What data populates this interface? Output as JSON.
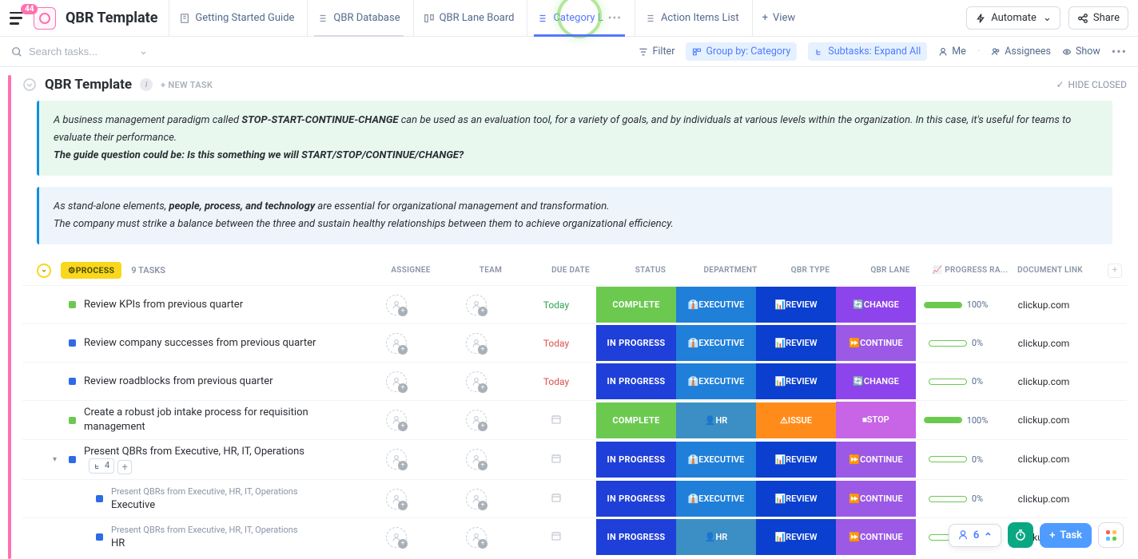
{
  "topbar": {
    "badge": "44",
    "title": "QBR Template",
    "tabs": [
      {
        "label": "Getting Started Guide",
        "icon": "doc"
      },
      {
        "label": "QBR Database",
        "icon": "list"
      },
      {
        "label": "QBR Lane Board",
        "icon": "board"
      },
      {
        "label": "Category L",
        "icon": "list",
        "active": true
      },
      {
        "label": "Action Items List",
        "icon": "list"
      }
    ],
    "addView": "View",
    "automate": "Automate",
    "share": "Share"
  },
  "toolbar": {
    "searchPlaceholder": "Search tasks...",
    "filter": "Filter",
    "groupBy": "Group by: Category",
    "subtasks": "Subtasks: Expand All",
    "me": "Me",
    "assignees": "Assignees",
    "show": "Show"
  },
  "page": {
    "title": "QBR Template",
    "newTask": "+ NEW TASK",
    "hideClosed": "HIDE CLOSED"
  },
  "callout1": {
    "pre": "A business management paradigm called ",
    "bold1": "STOP-START-CONTINUE-CHANGE",
    "mid": " can be used as an evaluation tool, for a variety of goals, and by individuals at various levels within the organization. In this case, it's useful for teams to evaluate their performance.",
    "line2a": "The guide question could be: Is this something we will START/STOP/CONTINUE/CHANGE?"
  },
  "callout2": {
    "pre": "As stand-alone elements, ",
    "bold1": "people, process, and technology",
    "mid": " are essential for organizational management and transformation.",
    "line2": "The company must strike a balance between the three and sustain healthy relationships between them to achieve organizational efficiency."
  },
  "group": {
    "name": "⚙PROCESS",
    "count": "9 TASKS"
  },
  "columns": [
    "ASSIGNEE",
    "TEAM",
    "DUE DATE",
    "STATUS",
    "DEPARTMENT",
    "QBR TYPE",
    "QBR LANE",
    "📈 PROGRESS RA...",
    "DOCUMENT LINK"
  ],
  "colors": {
    "complete": "#6bc950",
    "inprogress": "#1f3fd9",
    "executive": "#1f7fd9",
    "hr": "#3b8fc4",
    "review": "#0a3fcf",
    "issue": "#ff8c1a",
    "change": "#8e44ec",
    "continue": "#9b59e6",
    "stop": "#c765e6"
  },
  "rows": [
    {
      "sq": "green",
      "name": "Review KPIs from previous quarter",
      "due": "Today",
      "dueColor": "#2ea44f",
      "status": "COMPLETE",
      "statusBg": "#6bc950",
      "dept": "👔EXECUTIVE",
      "deptBg": "#1f7fd9",
      "type": "📊REVIEW",
      "typeBg": "#0a3fcf",
      "lane": "🔄CHANGE",
      "laneBg": "#8e44ec",
      "prog": 100,
      "link": "clickup.com"
    },
    {
      "sq": "blue",
      "name": "Review company successes from previous quarter",
      "due": "Today",
      "dueColor": "#d9534f",
      "status": "IN PROGRESS",
      "statusBg": "#1f3fd9",
      "dept": "👔EXECUTIVE",
      "deptBg": "#1f7fd9",
      "type": "📊REVIEW",
      "typeBg": "#0a3fcf",
      "lane": "⏩CONTINUE",
      "laneBg": "#9b59e6",
      "prog": 0,
      "link": "clickup.com"
    },
    {
      "sq": "blue",
      "name": "Review roadblocks from previous quarter",
      "due": "Today",
      "dueColor": "#d9534f",
      "status": "IN PROGRESS",
      "statusBg": "#1f3fd9",
      "dept": "👔EXECUTIVE",
      "deptBg": "#1f7fd9",
      "type": "📊REVIEW",
      "typeBg": "#0a3fcf",
      "lane": "🔄CHANGE",
      "laneBg": "#8e44ec",
      "prog": 0,
      "link": "clickup.com"
    },
    {
      "sq": "green",
      "name": "Create a robust job intake process for requisition management",
      "due": "",
      "status": "COMPLETE",
      "statusBg": "#6bc950",
      "dept": "👤HR",
      "deptBg": "#3b8fc4",
      "type": "⚠ISSUE",
      "typeBg": "#ff8c1a",
      "lane": "⏹STOP",
      "laneBg": "#c765e6",
      "prog": 100,
      "link": "clickup.com"
    },
    {
      "sq": "blue",
      "name": "Present QBRs from Executive, HR, IT, Operations",
      "due": "",
      "status": "IN PROGRESS",
      "statusBg": "#1f3fd9",
      "dept": "👔EXECUTIVE",
      "deptBg": "#1f7fd9",
      "type": "📊REVIEW",
      "typeBg": "#0a3fcf",
      "lane": "⏩CONTINUE",
      "laneBg": "#9b59e6",
      "prog": 0,
      "link": "clickup.com",
      "expandable": true,
      "subCount": "4"
    },
    {
      "sq": "blue",
      "sub": true,
      "parent": "Present QBRs from Executive, HR, IT, Operations",
      "name": "Executive",
      "due": "",
      "status": "IN PROGRESS",
      "statusBg": "#1f3fd9",
      "dept": "👔EXECUTIVE",
      "deptBg": "#1f7fd9",
      "type": "📊REVIEW",
      "typeBg": "#0a3fcf",
      "lane": "⏩CONTINUE",
      "laneBg": "#9b59e6",
      "prog": 0,
      "link": "clickup.com"
    },
    {
      "sq": "blue",
      "sub": true,
      "parent": "Present QBRs from Executive, HR, IT, Operations",
      "name": "HR",
      "due": "",
      "status": "IN PROGRESS",
      "statusBg": "#1f3fd9",
      "dept": "👤HR",
      "deptBg": "#3b8fc4",
      "type": "📊REVIEW",
      "typeBg": "#0a3fcf",
      "lane": "⏩CONTINUE",
      "laneBg": "#9b59e6",
      "prog": 0,
      "link": "clickup.com"
    }
  ],
  "floating": {
    "count": "6",
    "task": "Task"
  }
}
